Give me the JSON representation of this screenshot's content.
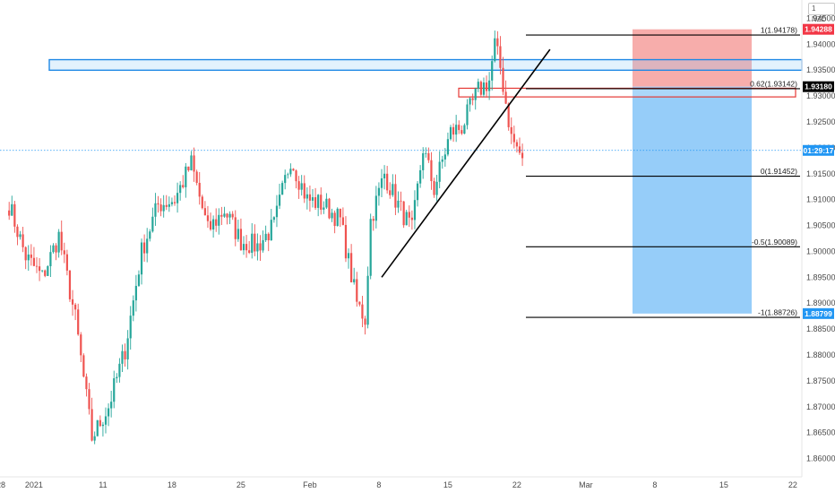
{
  "currency_badge": "1 NZD",
  "colors": {
    "up": "#26a69a",
    "down": "#ef5350",
    "current_price_line": "#2196f3",
    "stop_zone": "#f7a9a6",
    "target_zone": "#90caf9",
    "resistance_zone_border": "#1e88e5",
    "supply_zone_border": "#e53935",
    "trendline": "#000000",
    "fib_line": "#000000",
    "stop_tag": "#f23645",
    "entry_tag": "#000000",
    "current_tag": "#2196f3",
    "target_tag": "#2196f3"
  },
  "chart_data": {
    "type": "candlestick",
    "timeframe": "4H",
    "title": "",
    "ylim": [
      1.8575,
      1.9475
    ],
    "y_ticks": [
      "1.94500",
      "1.94000",
      "1.93500",
      "1.93000",
      "1.92500",
      "1.92000",
      "1.91500",
      "1.91000",
      "1.90500",
      "1.90000",
      "1.89500",
      "1.89000",
      "1.88500",
      "1.88000",
      "1.87500",
      "1.87000",
      "1.86500",
      "1.86000"
    ],
    "x_ticks": [
      {
        "label": "28",
        "bar": -3
      },
      {
        "label": "2021",
        "bar": 9
      },
      {
        "label": "11",
        "bar": 34
      },
      {
        "label": "18",
        "bar": 59
      },
      {
        "label": "25",
        "bar": 84
      },
      {
        "label": "Feb",
        "bar": 109
      },
      {
        "label": "8",
        "bar": 134
      },
      {
        "label": "15",
        "bar": 159
      },
      {
        "label": "22",
        "bar": 184
      },
      {
        "label": "Mar",
        "bar": 209
      },
      {
        "label": "8",
        "bar": 234
      },
      {
        "label": "15",
        "bar": 259
      },
      {
        "label": "22",
        "bar": 284
      }
    ],
    "bar_count_visible": 300,
    "ohlc_anchor_path": [
      [
        0,
        1.909
      ],
      [
        6,
        1.899
      ],
      [
        12,
        1.895
      ],
      [
        18,
        1.903
      ],
      [
        24,
        1.887
      ],
      [
        30,
        1.864
      ],
      [
        36,
        1.87
      ],
      [
        42,
        1.881
      ],
      [
        48,
        1.9
      ],
      [
        54,
        1.909
      ],
      [
        60,
        1.91
      ],
      [
        66,
        1.917
      ],
      [
        72,
        1.904
      ],
      [
        78,
        1.908
      ],
      [
        84,
        1.902
      ],
      [
        90,
        1.901
      ],
      [
        96,
        1.905
      ],
      [
        102,
        1.918
      ],
      [
        108,
        1.91
      ],
      [
        114,
        1.909
      ],
      [
        120,
        1.906
      ],
      [
        126,
        1.89
      ],
      [
        129,
        1.887
      ],
      [
        131,
        1.906
      ],
      [
        136,
        1.915
      ],
      [
        140,
        1.91
      ],
      [
        146,
        1.904
      ],
      [
        150,
        1.92
      ],
      [
        154,
        1.912
      ],
      [
        160,
        1.923
      ],
      [
        164,
        1.924
      ],
      [
        170,
        1.931
      ],
      [
        174,
        1.933
      ],
      [
        176,
        1.94
      ],
      [
        178,
        1.9355
      ],
      [
        182,
        1.922
      ],
      [
        186,
        1.918
      ]
    ],
    "levels": [
      {
        "label": "1(1.94178)",
        "price": 1.94178
      },
      {
        "label": "0.62(1.93142)",
        "price": 1.93142
      },
      {
        "label": "0(1.91452)",
        "price": 1.91452
      },
      {
        "label": "-0.5(1.90089)",
        "price": 1.90089
      },
      {
        "label": "-1(1.88726)",
        "price": 1.88726
      }
    ],
    "price_tags": [
      {
        "label": "1.94288",
        "price": 1.94288,
        "kind": "stop"
      },
      {
        "label": "1.93180",
        "price": 1.9318,
        "kind": "entry"
      },
      {
        "label": "01:29:17",
        "price": 1.9195,
        "kind": "current"
      },
      {
        "label": "1.88799",
        "price": 1.88799,
        "kind": "target"
      }
    ],
    "position": {
      "side": "short",
      "entry": 1.9318,
      "stop": 1.94288,
      "target": 1.88799
    },
    "zones": [
      {
        "name": "resistance",
        "top": 1.9365,
        "bottom": 1.9355
      },
      {
        "name": "supply",
        "top": 1.9315,
        "bottom": 1.93
      }
    ],
    "trendline": {
      "from": [
        135,
        1.895
      ],
      "to": [
        196,
        1.939
      ]
    },
    "current_price": 1.9195,
    "grid": false,
    "legend": "none"
  }
}
